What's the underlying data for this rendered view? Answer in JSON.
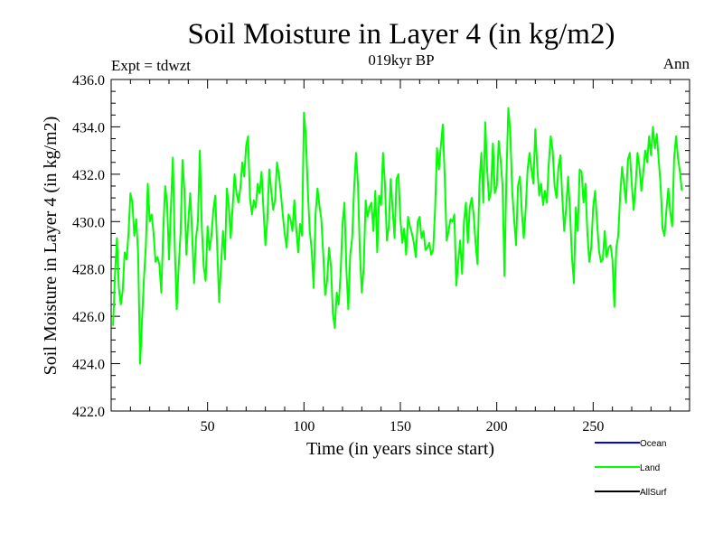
{
  "chart_data": {
    "type": "line",
    "title": "Soil Moisture in Layer 4 (in kg/m2)",
    "subtitle": "019kyr BP",
    "left_note": "Expt = tdwzt",
    "right_note": "Ann",
    "xlabel": "Time (in years since start)",
    "ylabel": "Soil Moisture in Layer 4 (in kg/m2)",
    "xlim": [
      0,
      300
    ],
    "ylim": [
      422.0,
      436.0
    ],
    "x_ticks": [
      50,
      100,
      150,
      200,
      250
    ],
    "y_ticks": [
      "422.0",
      "424.0",
      "426.0",
      "428.0",
      "430.0",
      "432.0",
      "434.0",
      "436.0"
    ],
    "legend": [
      {
        "label": "Ocean",
        "color": "#0000ff"
      },
      {
        "label": "Land",
        "color": "#00ff00"
      },
      {
        "label": "AllSurf",
        "color": "#000000"
      }
    ],
    "series": [
      {
        "name": "Land",
        "color": "#00ff00",
        "x_start": 1,
        "x_step": 1,
        "values": [
          425.6,
          427.8,
          429.3,
          427.2,
          426.5,
          427.1,
          428.7,
          428.4,
          429.5,
          431.2,
          430.8,
          429.4,
          430.1,
          428.6,
          424.0,
          425.8,
          427.6,
          429.0,
          431.6,
          430.0,
          430.3,
          429.5,
          428.3,
          428.5,
          428.2,
          427.0,
          429.6,
          431.5,
          430.8,
          428.4,
          430.6,
          432.7,
          428.9,
          426.3,
          428.1,
          429.5,
          432.6,
          431.3,
          428.6,
          430.0,
          431.2,
          429.5,
          427.4,
          429.3,
          430.0,
          433.0,
          429.8,
          428.1,
          427.5,
          429.8,
          428.8,
          429.4,
          430.5,
          431.1,
          428.9,
          426.6,
          428.2,
          429.6,
          428.4,
          431.4,
          430.7,
          429.3,
          430.6,
          432.0,
          431.2,
          430.8,
          431.4,
          432.5,
          431.9,
          433.2,
          433.6,
          431.0,
          430.3,
          430.9,
          430.6,
          431.6,
          431.2,
          432.1,
          430.5,
          429.0,
          430.1,
          432.2,
          431.3,
          430.5,
          430.9,
          432.5,
          432.0,
          431.2,
          430.3,
          429.5,
          428.9,
          430.3,
          430.1,
          429.6,
          430.9,
          429.7,
          428.7,
          429.9,
          429.4,
          434.6,
          433.6,
          431.3,
          429.6,
          428.8,
          427.2,
          430.3,
          431.4,
          430.7,
          430.1,
          428.6,
          426.9,
          427.5,
          428.9,
          428.1,
          426.1,
          425.5,
          427.0,
          426.5,
          427.8,
          429.9,
          430.8,
          428.0,
          426.3,
          428.6,
          429.3,
          431.4,
          432.9,
          431.6,
          428.7,
          427.0,
          428.1,
          430.9,
          430.2,
          430.6,
          430.8,
          429.6,
          431.3,
          428.7,
          431.1,
          430.7,
          432.9,
          431.6,
          429.2,
          429.8,
          431.8,
          430.5,
          429.3,
          431.8,
          432.0,
          430.1,
          429.1,
          429.7,
          428.6,
          430.2,
          429.8,
          429.5,
          429.1,
          428.5,
          430.0,
          430.2,
          429.3,
          429.6,
          428.8,
          428.9,
          429.1,
          428.6,
          428.8,
          430.5,
          433.1,
          432.2,
          433.2,
          434.1,
          431.9,
          429.2,
          429.6,
          430.1,
          430.0,
          430.3,
          427.3,
          428.3,
          429.2,
          427.8,
          430.0,
          430.8,
          429.1,
          430.6,
          431.0,
          430.3,
          429.1,
          428.2,
          431.6,
          432.9,
          430.8,
          434.2,
          432.2,
          430.9,
          431.3,
          433.3,
          431.2,
          431.5,
          433.4,
          432.6,
          431.5,
          427.7,
          431.9,
          434.8,
          433.8,
          431.3,
          430.1,
          429.0,
          431.5,
          431.9,
          430.4,
          429.3,
          430.5,
          432.2,
          432.9,
          432.2,
          431.6,
          433.9,
          432.3,
          431.1,
          431.6,
          430.7,
          431.3,
          430.8,
          432.5,
          433.6,
          433.0,
          431.5,
          431.0,
          432.3,
          432.8,
          431.0,
          429.6,
          430.6,
          431.9,
          430.4,
          428.5,
          427.4,
          430.6,
          429.6,
          432.2,
          432.1,
          430.8,
          431.6,
          429.5,
          428.3,
          428.9,
          430.6,
          431.3,
          430.0,
          428.8,
          428.3,
          428.4,
          429.6,
          428.5,
          428.9,
          429.0,
          428.4,
          426.4,
          428.9,
          429.4,
          431.1,
          432.3,
          431.6,
          430.8,
          432.6,
          432.9,
          431.6,
          430.5,
          431.5,
          432.9,
          432.3,
          431.3,
          432.1,
          433.0,
          432.5,
          433.6,
          432.8,
          434.0,
          433.1,
          433.7,
          432.6,
          431.5,
          429.7,
          429.4,
          430.5,
          431.4,
          430.4,
          429.8,
          432.7,
          433.6,
          432.7,
          432.1,
          431.3
        ]
      }
    ]
  }
}
